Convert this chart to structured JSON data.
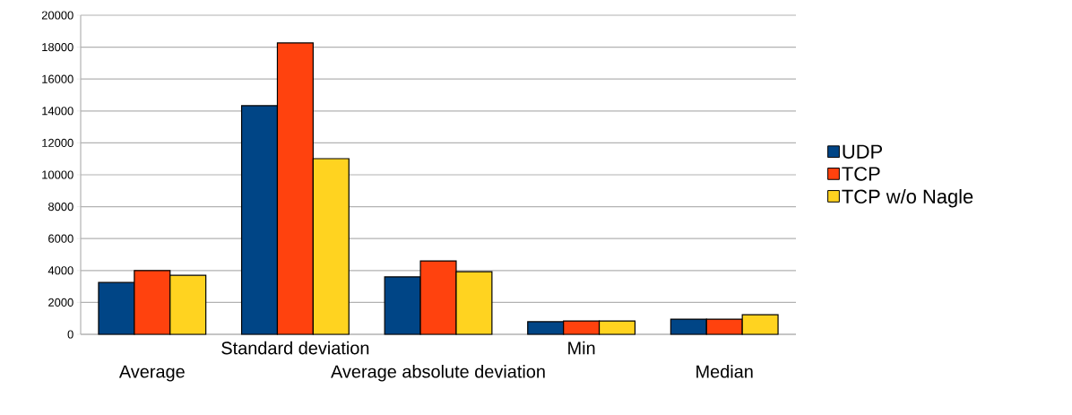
{
  "chart_data": {
    "type": "bar",
    "categories": [
      "Average",
      "Standard deviation",
      "Average absolute deviation",
      "Min",
      "Median"
    ],
    "series": [
      {
        "name": "UDP",
        "color": "#004586",
        "values": [
          3250,
          14330,
          3600,
          790,
          950
        ]
      },
      {
        "name": "TCP",
        "color": "#ff420e",
        "values": [
          4000,
          18260,
          4600,
          840,
          950
        ]
      },
      {
        "name": "TCP w/o Nagle",
        "color": "#ffd320",
        "values": [
          3700,
          11010,
          3930,
          840,
          1230
        ]
      }
    ],
    "ylim": [
      0,
      20000
    ],
    "yticks": [
      0,
      2000,
      4000,
      6000,
      8000,
      10000,
      12000,
      14000,
      16000,
      18000,
      20000
    ],
    "grid": "y",
    "legend": "right"
  }
}
